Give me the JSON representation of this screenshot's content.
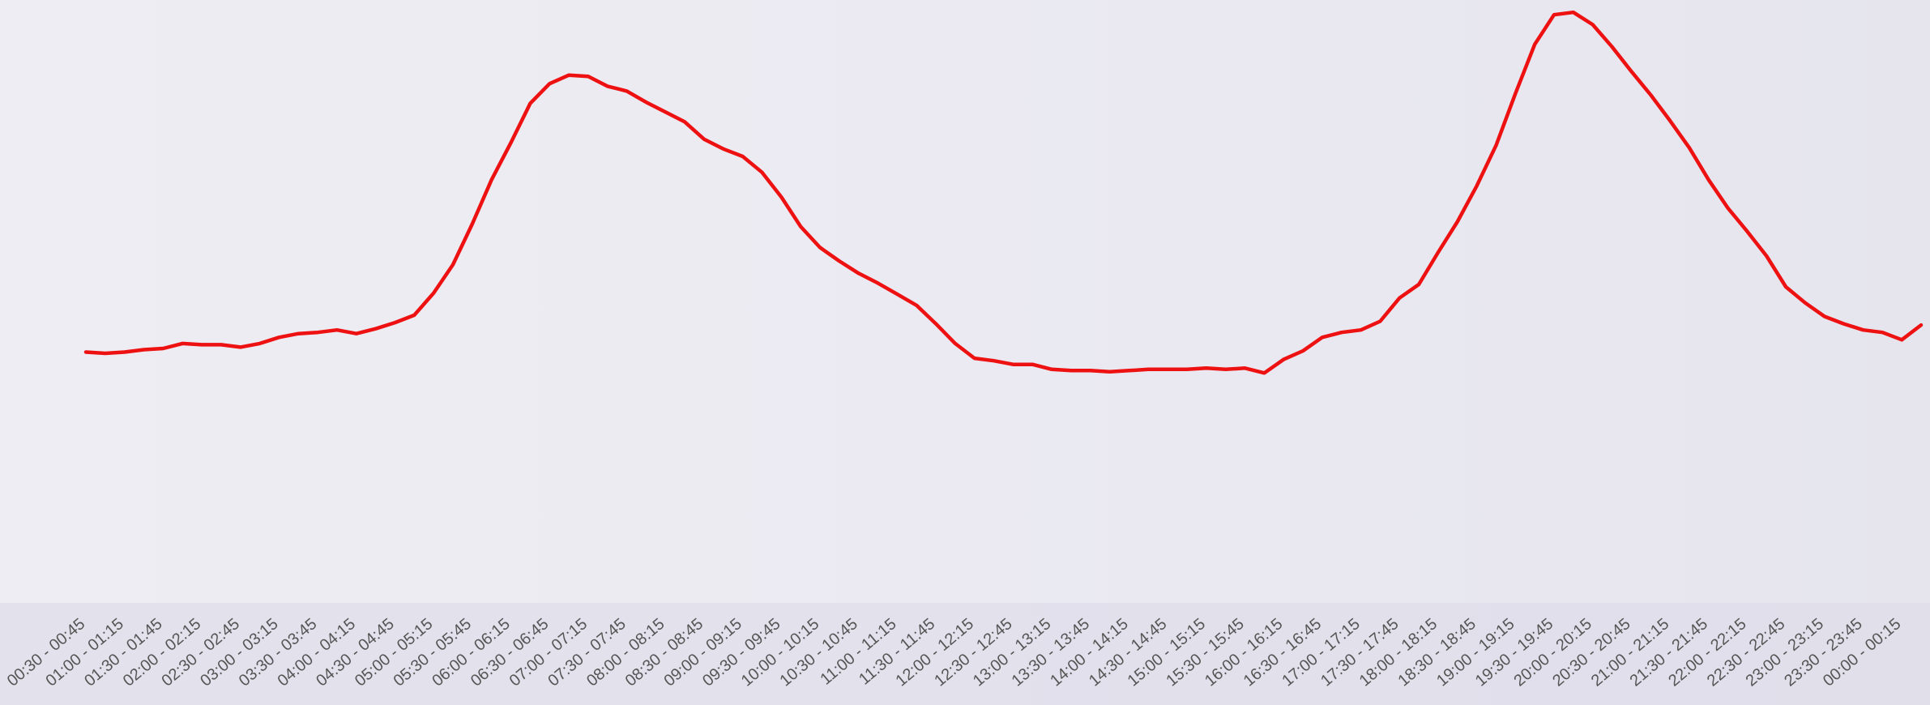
{
  "chart_data": {
    "type": "line",
    "categories": [
      "00:30 - 00:45",
      null,
      "01:00 - 01:15",
      null,
      "01:30 - 01:45",
      null,
      "02:00 - 02:15",
      null,
      "02:30 - 02:45",
      null,
      "03:00 - 03:15",
      null,
      "03:30 - 03:45",
      null,
      "04:00 - 04:15",
      null,
      "04:30 - 04:45",
      null,
      "05:00 - 05:15",
      null,
      "05:30 - 05:45",
      null,
      "06:00 - 06:15",
      null,
      "06:30 - 06:45",
      null,
      "07:00 - 07:15",
      null,
      "07:30 - 07:45",
      null,
      "08:00 - 08:15",
      null,
      "08:30 - 08:45",
      null,
      "09:00 - 09:15",
      null,
      "09:30 - 09:45",
      null,
      "10:00 - 10:15",
      null,
      "10:30 - 10:45",
      null,
      "11:00 - 11:15",
      null,
      "11:30 - 11:45",
      null,
      "12:00 - 12:15",
      null,
      "12:30 - 12:45",
      null,
      "13:00 - 13:15",
      null,
      "13:30 - 13:45",
      null,
      "14:00 - 14:15",
      null,
      "14:30 - 14:45",
      null,
      "15:00 - 15:15",
      null,
      "15:30 - 15:45",
      null,
      "16:00 - 16:15",
      null,
      "16:30 - 16:45",
      null,
      "17:00 - 17:15",
      null,
      "17:30 - 17:45",
      null,
      "18:00 - 18:15",
      null,
      "18:30 - 18:45",
      null,
      "19:00 - 19:15",
      null,
      "19:30 - 19:45",
      null,
      "20:00 - 20:15",
      null,
      "20:30 - 20:45",
      null,
      "21:00 - 21:15",
      null,
      "21:30 - 21:45",
      null,
      "22:00 - 22:15",
      null,
      "22:30 - 22:45",
      null,
      "23:00 - 23:15",
      null,
      "23:30 - 23:45",
      null,
      "00:00 - 00:15",
      null
    ],
    "values": [
      284,
      283,
      284,
      286,
      287,
      291,
      290,
      290,
      288,
      291,
      296,
      299,
      300,
      302,
      299,
      303,
      308,
      314,
      332,
      355,
      388,
      424,
      454,
      486,
      502,
      509,
      508,
      500,
      496,
      487,
      479,
      471,
      457,
      449,
      443,
      430,
      410,
      386,
      369,
      358,
      348,
      340,
      331,
      322,
      307,
      291,
      279,
      277,
      274,
      274,
      270,
      269,
      269,
      268,
      269,
      270,
      270,
      270,
      271,
      270,
      271,
      267,
      278,
      285,
      296,
      300,
      302,
      309,
      328,
      339,
      365,
      390,
      419,
      452,
      494,
      534,
      558,
      560,
      550,
      532,
      512,
      493,
      472,
      450,
      424,
      401,
      382,
      362,
      337,
      324,
      313,
      307,
      302,
      300,
      294,
      306
    ],
    "color": "#ee1111",
    "ylim": [
      0,
      570
    ]
  }
}
